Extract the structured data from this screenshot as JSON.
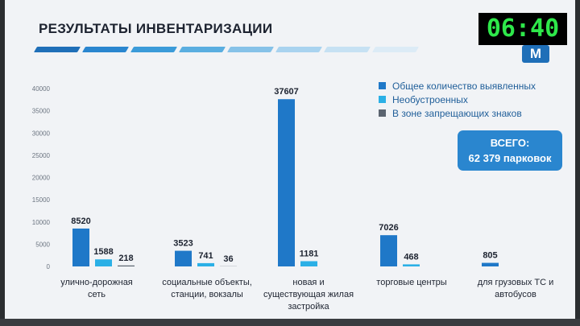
{
  "slide": {
    "title": "РЕЗУЛЬТАТЫ ИНВЕНТАРИЗАЦИИ",
    "clock": "06:40",
    "logo": "M",
    "total_label": "ВСЕГО:",
    "total_value": "62 379 парковок",
    "stripe_colors": [
      "#1f6fb8",
      "#2a86cf",
      "#3b9bd9",
      "#5aaee0",
      "#86c2e8",
      "#a9d3ef",
      "#c6e1f3",
      "#dcebf6"
    ]
  },
  "chart_data": {
    "type": "bar",
    "categories": [
      [
        "улично-дорожная",
        "сеть"
      ],
      [
        "социальные объекты,",
        "станции, вокзалы"
      ],
      [
        "новая и",
        "существующая жилая",
        "застройка"
      ],
      [
        "торговые центры"
      ],
      [
        "для грузовых ТС и",
        "автобусов"
      ]
    ],
    "series": [
      {
        "name": "Общее количество выявленных",
        "color": "#1f78c8",
        "values": [
          8520,
          3523,
          37607,
          7026,
          805
        ]
      },
      {
        "name": "Необустроенных",
        "color": "#2bb0e6",
        "values": [
          1588,
          741,
          1181,
          468,
          null
        ]
      },
      {
        "name": "В зоне запрещающих знаков",
        "color": "#5b6470",
        "values": [
          218,
          36,
          null,
          null,
          null
        ]
      }
    ],
    "data_labels": [
      [
        "8520",
        "1588",
        "218"
      ],
      [
        "3523",
        "741",
        "36"
      ],
      [
        "37607",
        "1181",
        ""
      ],
      [
        "7026",
        "468",
        ""
      ],
      [
        "805",
        "",
        ""
      ]
    ],
    "yticks": [
      "0",
      "5000",
      "10000",
      "15000",
      "20000",
      "25000",
      "30000",
      "35000",
      "40000"
    ],
    "ylim": [
      0,
      40000
    ],
    "legend_position": "top-right",
    "grid": false
  }
}
